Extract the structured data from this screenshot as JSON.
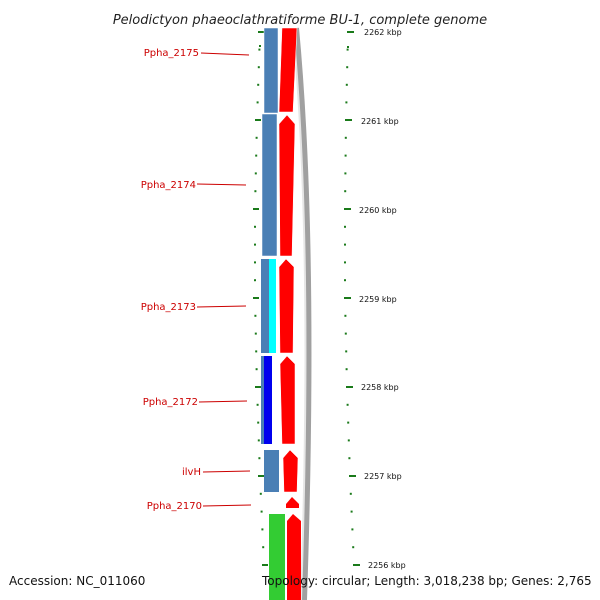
{
  "title": "Pelodictyon phaeoclathratiforme BU-1, complete genome",
  "accession": "Accession: NC_011060",
  "topology": "Topology: circular; Length: 3,018,238 bp; Genes: 2,765",
  "colors": {
    "gene_label": "#cc0000",
    "tick": "#1a7a1a",
    "cds": "#ff0000",
    "backbone": "#999999"
  },
  "scale_labels": [
    "2262 kbp",
    "2261 kbp",
    "2260 kbp",
    "2259 kbp",
    "2258 kbp",
    "2257 kbp",
    "2256 kbp"
  ],
  "genes": [
    {
      "name": "Ppha_2175",
      "color": "#4a7fb5"
    },
    {
      "name": "Ppha_2174",
      "color": "#4a7fb5"
    },
    {
      "name": "Ppha_2173",
      "color": "#00ffff"
    },
    {
      "name": "Ppha_2172",
      "color": "#0000ee"
    },
    {
      "name": "ilvH",
      "color": "#4a7fb5"
    },
    {
      "name": "Ppha_2170",
      "color": "#33cc33"
    }
  ]
}
